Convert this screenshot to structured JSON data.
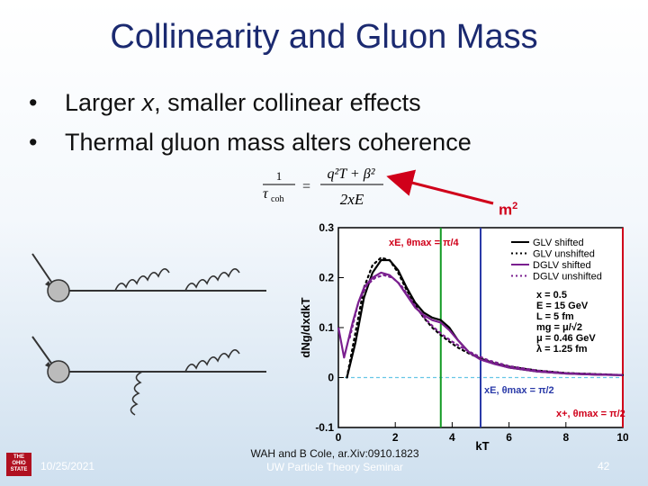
{
  "slide": {
    "title": "Collinearity and Gluon Mass",
    "bullets": [
      {
        "pre": "Larger ",
        "italic": "x",
        "post": ", smaller collinear effects"
      },
      {
        "pre": "Thermal gluon mass alters coherence",
        "italic": "",
        "post": ""
      }
    ],
    "bullet_char": "•",
    "formula": {
      "lhs_num": "1",
      "lhs_den": "τ",
      "lhs_sub": "coh",
      "rhs_num": "q²T + β²",
      "rhs_den": "2xE"
    },
    "m2_label": "m",
    "m2_sup": "2",
    "accent_color": "#d0001a",
    "title_color": "#1b2a70"
  },
  "footer": {
    "logo_lines": [
      "THE",
      "OHIO",
      "STATE",
      "UNIV"
    ],
    "date": "10/25/2021",
    "citation": "WAH and B Cole, ar.Xiv:0910.1823",
    "seminar": "UW Particle Theory Seminar",
    "page": "42"
  },
  "chart_data": {
    "type": "line",
    "xlabel": "kT",
    "ylabel": "dNg/dxdkT",
    "xlim": [
      0,
      10
    ],
    "ylim": [
      -0.1,
      0.3
    ],
    "x_ticks": [
      "0",
      "2",
      "4",
      "6",
      "8",
      "10"
    ],
    "y_ticks": [
      "-0.1",
      "0",
      "0.1",
      "0.2",
      "0.3"
    ],
    "legend_position": "top-right",
    "series": [
      {
        "name": "GLV shifted",
        "color": "#000000",
        "style": "solid",
        "x": [
          0.3,
          0.6,
          0.9,
          1.2,
          1.5,
          1.8,
          2.1,
          2.4,
          2.7,
          3.0,
          3.3,
          3.6,
          3.9,
          4.2,
          4.6,
          5.0,
          5.5,
          6,
          7,
          8,
          9,
          10
        ],
        "y": [
          0.0,
          0.07,
          0.16,
          0.21,
          0.235,
          0.235,
          0.215,
          0.18,
          0.15,
          0.13,
          0.12,
          0.115,
          0.1,
          0.075,
          0.05,
          0.037,
          0.028,
          0.02,
          0.012,
          0.008,
          0.006,
          0.005
        ]
      },
      {
        "name": "GLV unshifted",
        "color": "#000000",
        "style": "dotted",
        "x": [
          0.3,
          0.6,
          0.9,
          1.2,
          1.5,
          1.8,
          2.1,
          2.4,
          2.7,
          3.0,
          3.3,
          3.6,
          3.9,
          4.2,
          4.6,
          5.0,
          5.5,
          6,
          7,
          8,
          9,
          10
        ],
        "y": [
          0.0,
          0.09,
          0.18,
          0.225,
          0.24,
          0.235,
          0.21,
          0.175,
          0.145,
          0.12,
          0.1,
          0.085,
          0.072,
          0.06,
          0.048,
          0.038,
          0.028,
          0.022,
          0.014,
          0.009,
          0.007,
          0.005
        ]
      },
      {
        "name": "DGLV shifted",
        "color": "#7a1f8f",
        "style": "solid",
        "x": [
          0.0,
          0.2,
          0.5,
          0.7,
          0.9,
          1.2,
          1.5,
          1.8,
          2.1,
          2.4,
          2.7,
          3.0,
          3.3,
          3.6,
          3.9,
          4.2,
          4.6,
          5.0,
          5.5,
          6,
          7,
          8,
          9,
          10
        ],
        "y": [
          0.1,
          0.04,
          0.11,
          0.15,
          0.18,
          0.2,
          0.21,
          0.205,
          0.19,
          0.165,
          0.14,
          0.125,
          0.115,
          0.11,
          0.095,
          0.075,
          0.05,
          0.036,
          0.027,
          0.02,
          0.012,
          0.008,
          0.006,
          0.005
        ]
      },
      {
        "name": "DGLV unshifted",
        "color": "#7a1f8f",
        "style": "dotted",
        "x": [
          0.4,
          0.7,
          1.0,
          1.3,
          1.6,
          1.9,
          2.2,
          2.5,
          2.8,
          3.1,
          3.4,
          3.7,
          4.0,
          4.4,
          4.8,
          5.3,
          6,
          7,
          8,
          9,
          10
        ],
        "y": [
          0.08,
          0.15,
          0.185,
          0.2,
          0.205,
          0.2,
          0.185,
          0.16,
          0.135,
          0.115,
          0.098,
          0.084,
          0.072,
          0.058,
          0.046,
          0.034,
          0.023,
          0.014,
          0.009,
          0.007,
          0.005
        ]
      }
    ],
    "vlines": [
      {
        "x": 3.6,
        "color": "#129a23",
        "label": "xE, θmax = π/4",
        "label_color": "#d0001a"
      },
      {
        "x": 5.0,
        "color": "#2a3aa8",
        "label": "xE, θmax = π/2",
        "label_color": "#2a3aa8"
      },
      {
        "x": 10.0,
        "color": "#d0001a",
        "label": "x+, θmax = π/2",
        "label_color": "#d0001a"
      }
    ],
    "hline": {
      "y": 0.0,
      "color": "#66c6e6",
      "style": "dashed"
    },
    "params": [
      "x = 0.5",
      "E = 15 GeV",
      "L = 5 fm",
      "mg = μ/√2",
      "μ = 0.46 GeV",
      "λ = 1.25 fm"
    ]
  }
}
